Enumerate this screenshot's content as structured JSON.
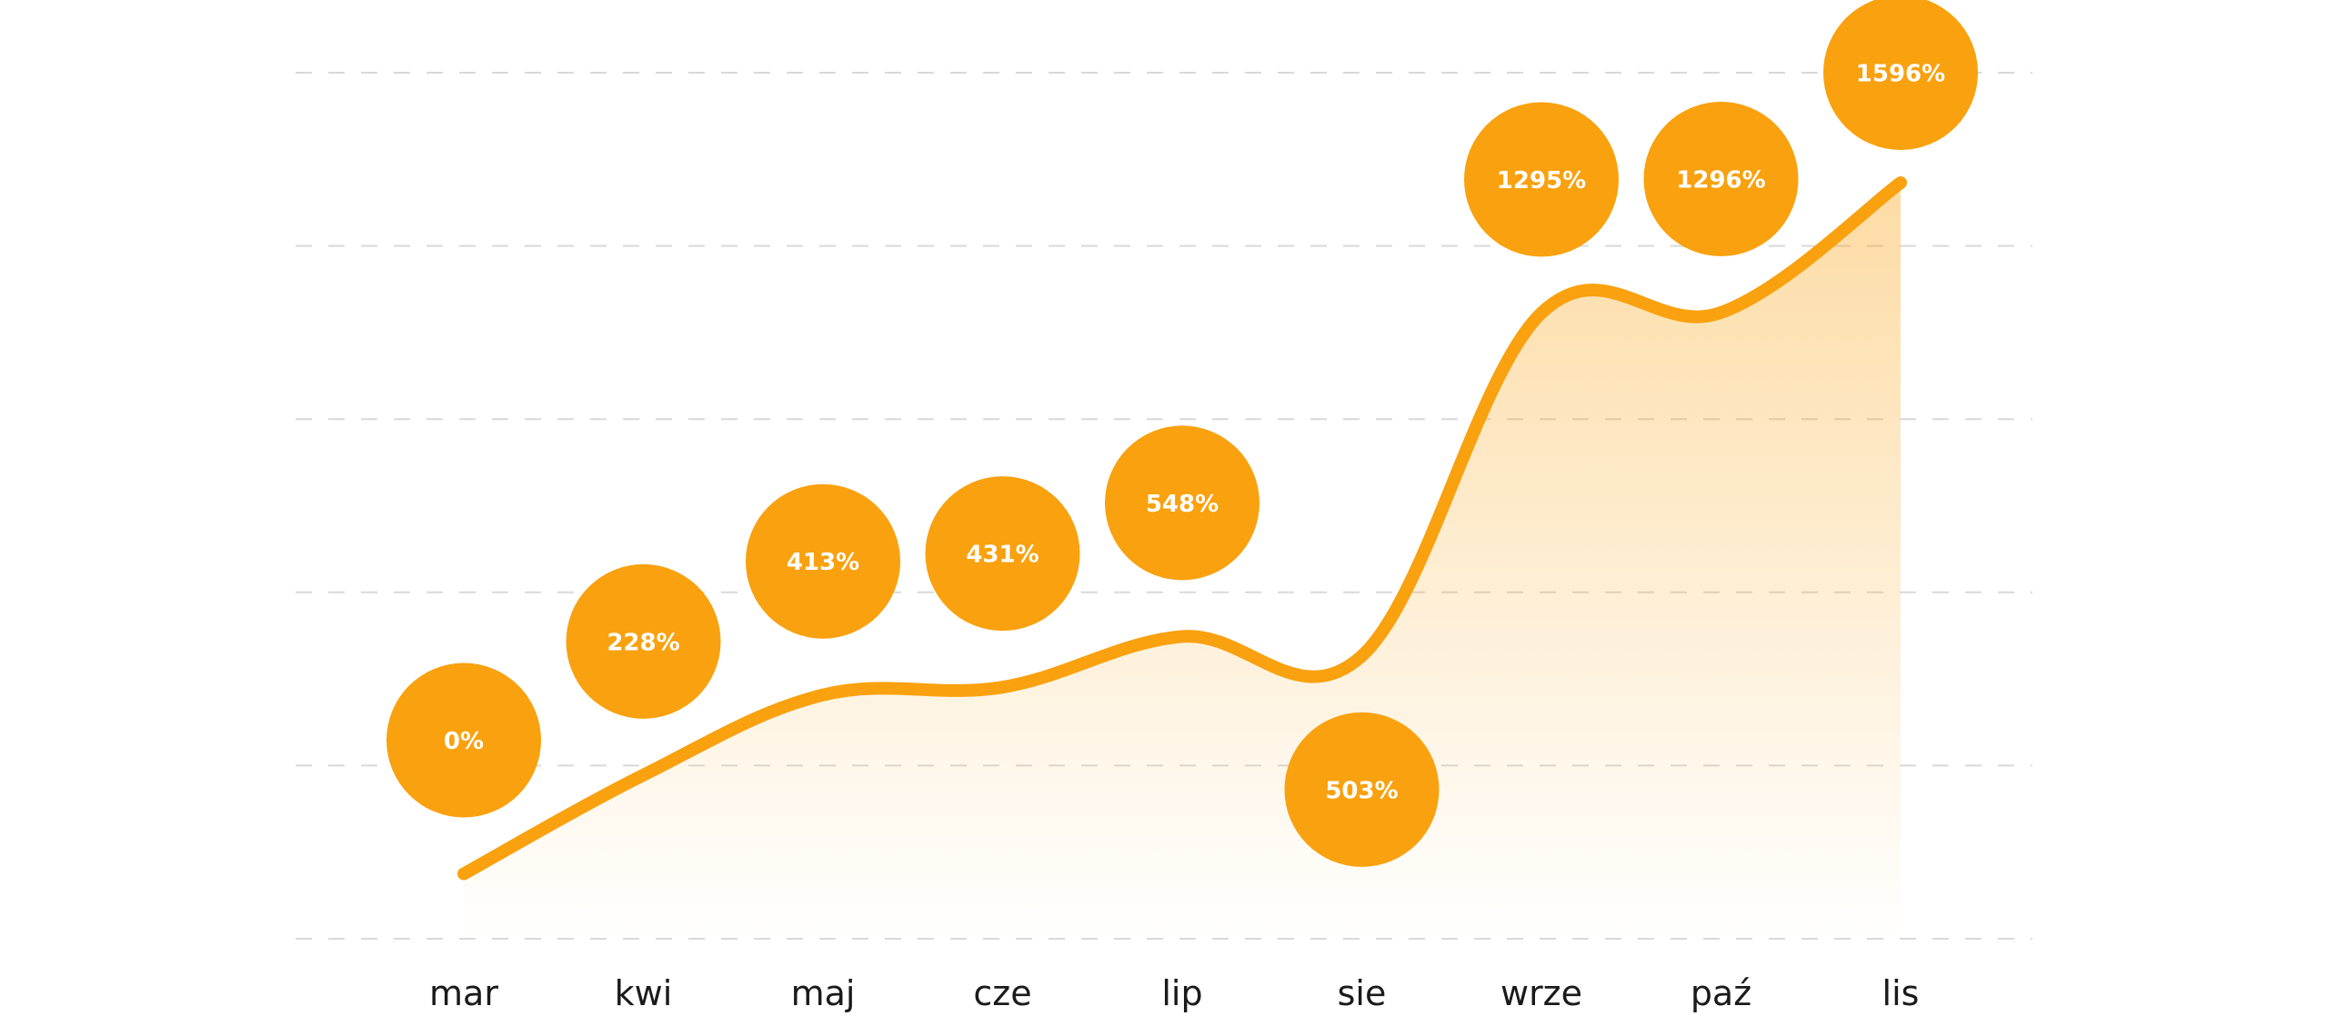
{
  "chart_data": {
    "type": "line",
    "categories": [
      "mar",
      "kwi",
      "maj",
      "cze",
      "lip",
      "sie",
      "wrze",
      "paź",
      "lis"
    ],
    "series": [
      {
        "values": [
          0,
          228,
          413,
          431,
          548,
          503,
          1295,
          1296,
          1596
        ],
        "data_labels": [
          "0%",
          "228%",
          "413%",
          "431%",
          "548%",
          "503%",
          "1295%",
          "1296%",
          "1596%"
        ]
      }
    ],
    "ylim": [
      -150,
      1850
    ],
    "grid": true,
    "area_fill": true,
    "colors": {
      "accent": "#f9a10e",
      "grid": "#d9d9d9",
      "text": "#1a1a1a",
      "label": "#ffffff"
    }
  }
}
